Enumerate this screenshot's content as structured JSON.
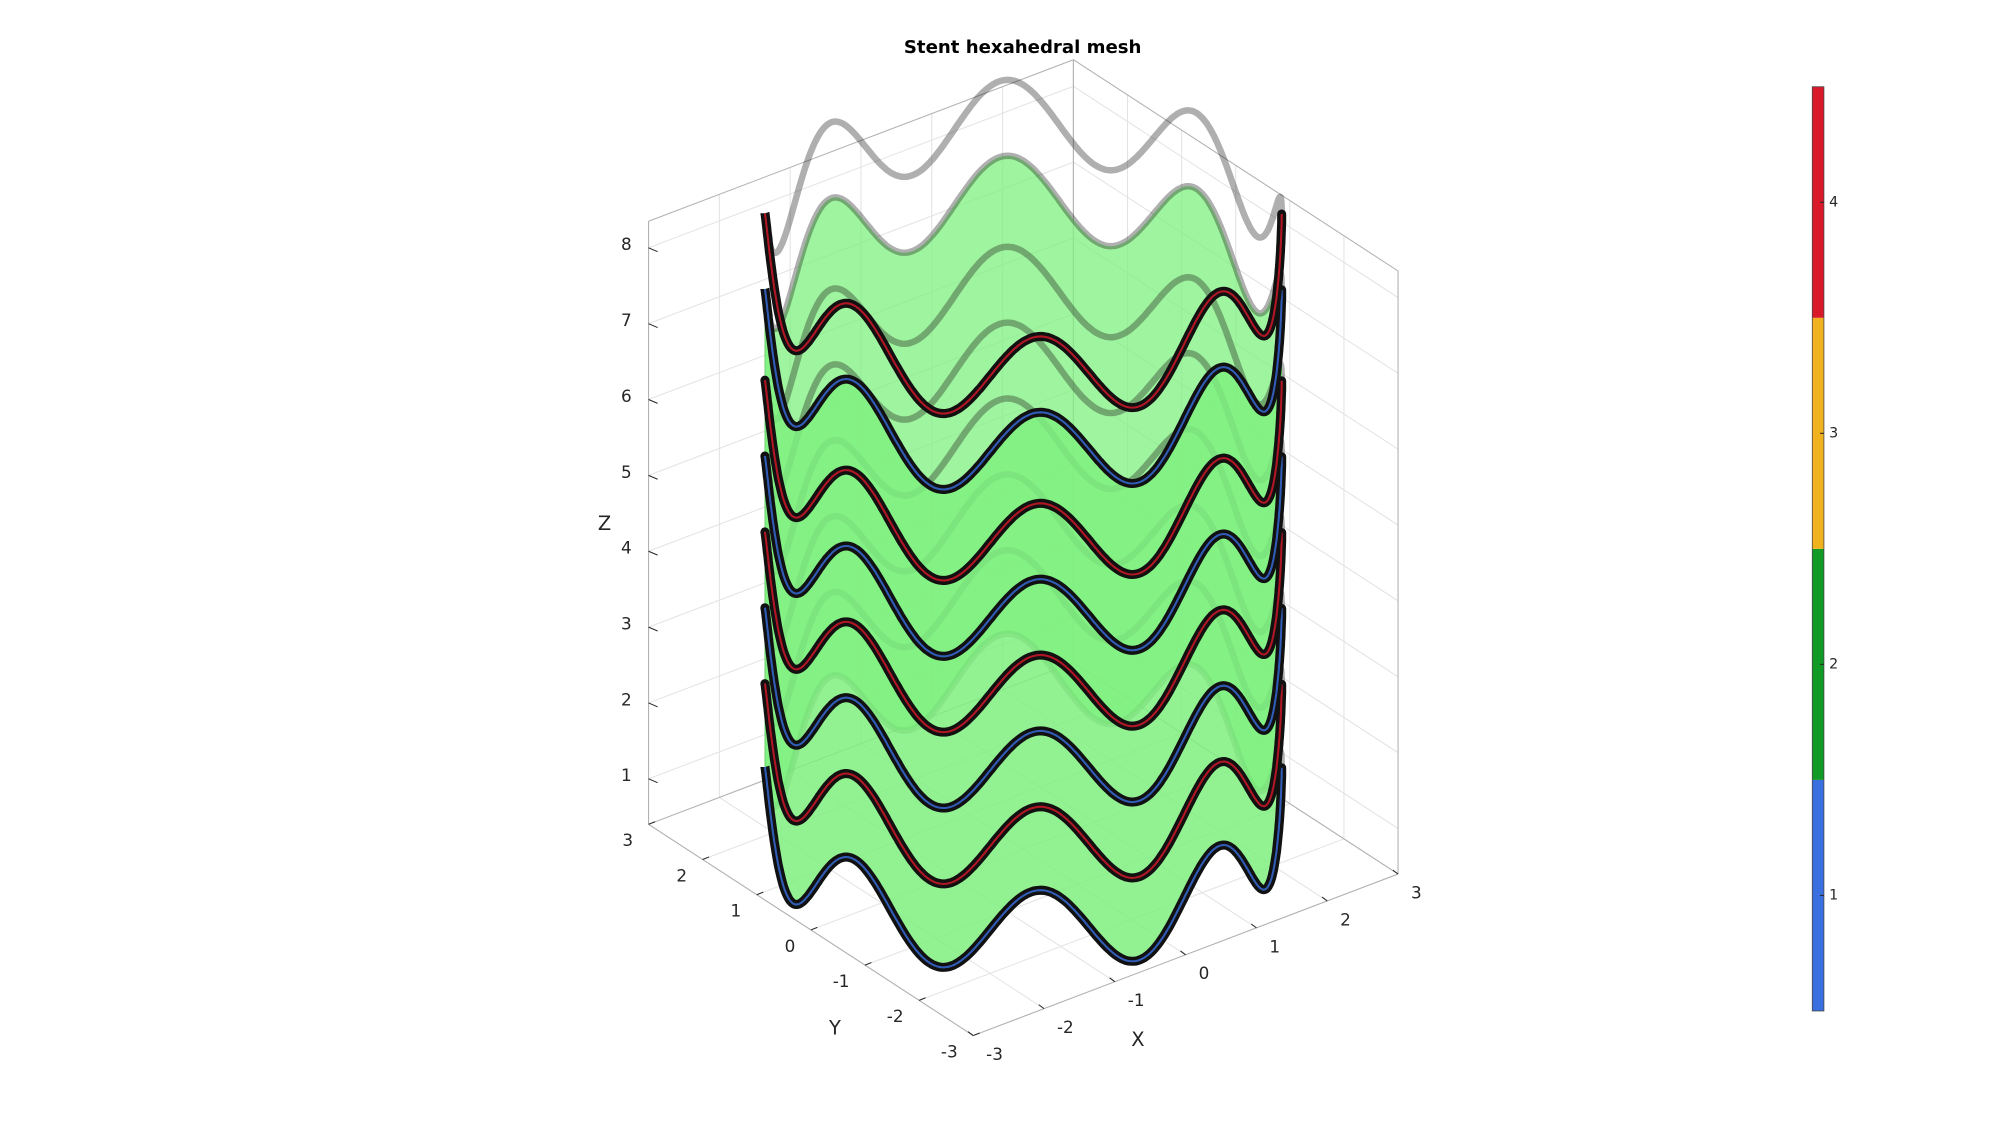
{
  "chart_data": {
    "type": "surface3d",
    "title": "Stent hexahedral mesh",
    "xlabel": "X",
    "ylabel": "Y",
    "zlabel": "Z",
    "xlim": [
      -3,
      3
    ],
    "ylim": [
      -3,
      3
    ],
    "zlim": [
      0.4,
      8.35
    ],
    "xticks": [
      -3,
      -2,
      -1,
      0,
      1,
      2,
      3
    ],
    "yticks": [
      -3,
      -2,
      -1,
      0,
      1,
      2,
      3
    ],
    "zticks": [
      1,
      2,
      3,
      4,
      5,
      6,
      7,
      8
    ],
    "grid": true,
    "surface_color": "#7ff07f",
    "stent": {
      "radius": 2.9,
      "amplitude": 0.55,
      "waves": 8,
      "rings_z": [
        1.0,
        2.1,
        3.1,
        4.1,
        5.1,
        6.1,
        7.3,
        8.3
      ]
    },
    "colorbar": {
      "clim": [
        0.5,
        4.5
      ],
      "ticks": [
        1,
        2,
        3,
        4
      ],
      "colors": [
        "#3a6fe0",
        "#119a26",
        "#f0b21e",
        "#d9182a"
      ]
    }
  }
}
